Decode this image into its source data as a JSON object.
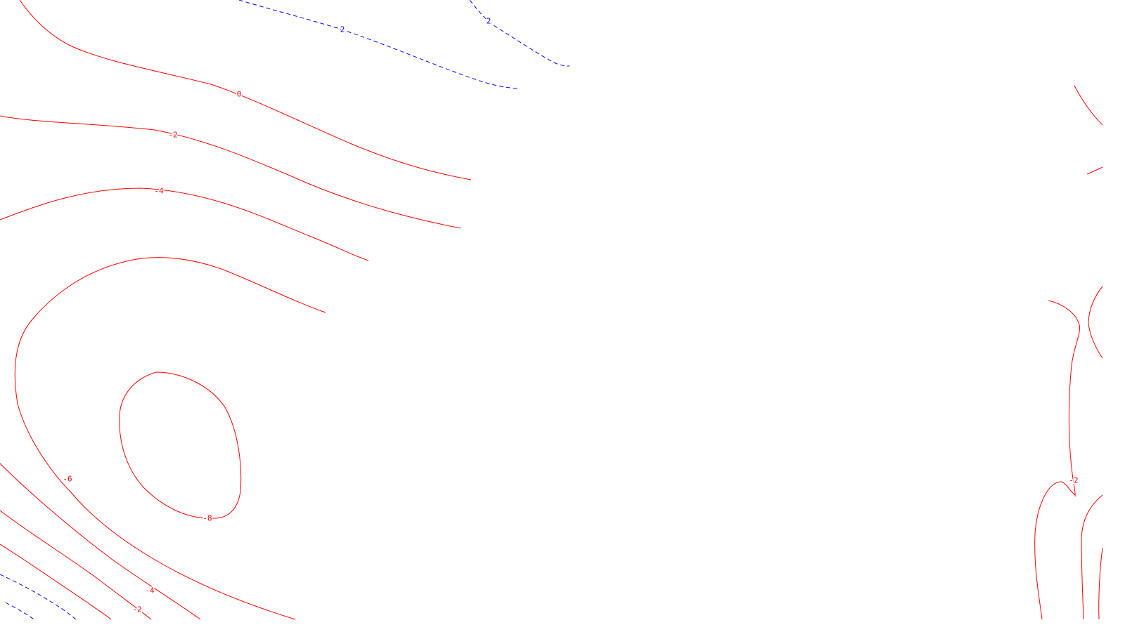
{
  "chart_data": {
    "type": "contour",
    "contour_levels": [
      -8,
      -6,
      -4,
      -2,
      0,
      2
    ],
    "positive_style": {
      "color": "#0000ff",
      "dash": "dashed"
    },
    "negative_style": {
      "color": "#ff0000",
      "dash": "solid"
    },
    "zero_style": {
      "color": "#ff0000",
      "dash": "solid"
    },
    "labels": [
      {
        "id": "lbl-2-top",
        "text": "2",
        "level": 2
      },
      {
        "id": "lbl-2-upper",
        "text": "2",
        "level": 2
      },
      {
        "id": "lbl-0",
        "text": "0",
        "level": 0
      },
      {
        "id": "lbl-m2-left",
        "text": "-2",
        "level": -2
      },
      {
        "id": "lbl-m4-left",
        "text": "-4",
        "level": -4
      },
      {
        "id": "lbl-m6",
        "text": "-6",
        "level": -6
      },
      {
        "id": "lbl-m8",
        "text": "-8",
        "level": -8
      },
      {
        "id": "lbl-m4-bottom",
        "text": "-4",
        "level": -4
      },
      {
        "id": "lbl-m2-bottom",
        "text": "-2",
        "level": -2
      },
      {
        "id": "lbl-m2-right",
        "text": "-2",
        "level": -2
      }
    ]
  }
}
